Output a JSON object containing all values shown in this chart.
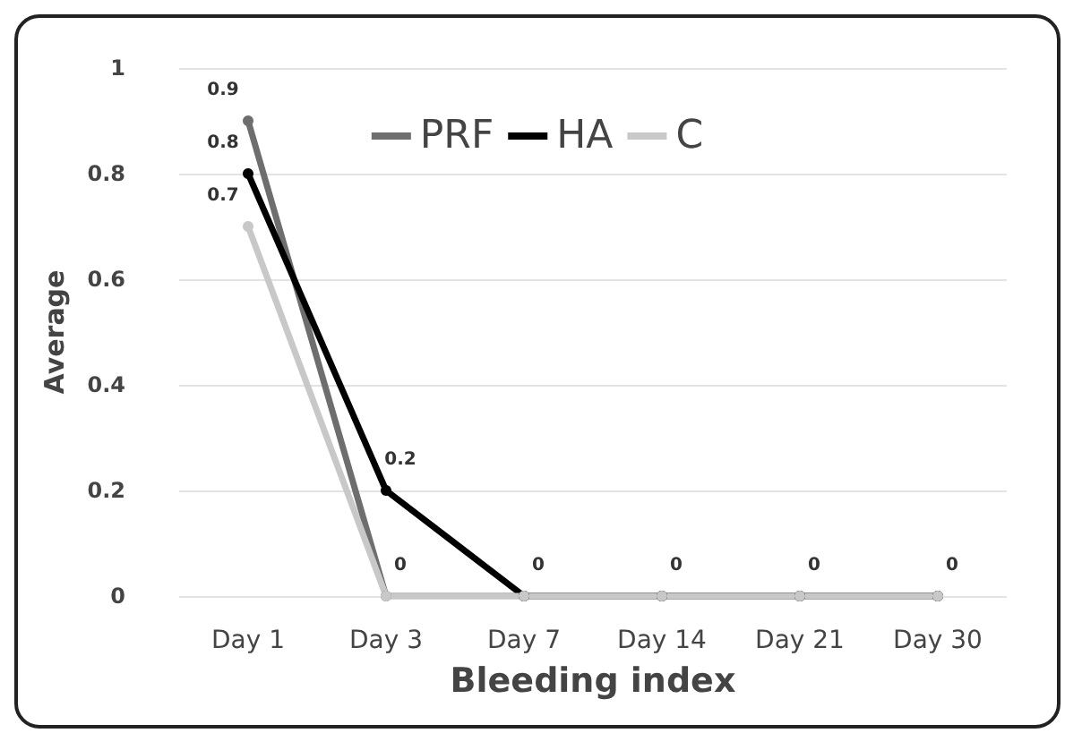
{
  "chart_data": {
    "type": "line",
    "xlabel": "Bleeding index",
    "ylabel": "Average",
    "categories": [
      "Day 1",
      "Day 3",
      "Day 7",
      "Day 14",
      "Day 21",
      "Day 30"
    ],
    "series": [
      {
        "name": "PRF",
        "color": "#6e6e6e",
        "values": [
          0.9,
          0,
          0,
          0,
          0,
          0
        ],
        "value_labels": [
          "0.9",
          null,
          null,
          null,
          null,
          null
        ]
      },
      {
        "name": "HA",
        "color": "#000000",
        "values": [
          0.8,
          0.2,
          0,
          0,
          0,
          0
        ],
        "value_labels": [
          "0.8",
          "0.2",
          null,
          null,
          null,
          null
        ]
      },
      {
        "name": "C",
        "color": "#c8c8c8",
        "values": [
          0.7,
          0,
          0,
          0,
          0,
          0
        ],
        "value_labels": [
          "0.7",
          "0",
          "0",
          "0",
          "0",
          "0"
        ]
      }
    ],
    "ylim": [
      0,
      1
    ],
    "yticks": [
      0,
      0.2,
      0.4,
      0.6,
      0.8,
      1
    ],
    "grid": "y",
    "legend": "top",
    "marker": "circle",
    "line_style": "solid"
  }
}
